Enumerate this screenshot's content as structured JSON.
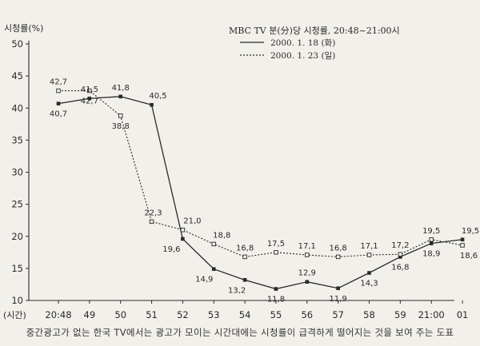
{
  "caption": "중간광고가 없는 한국 TV에서는 광고가 모이는 시간대에는 시청률이 급격하게 떨어지는 것을 보여 주는 도표",
  "chart_data": {
    "type": "line",
    "title": "MBC TV 분(分)당 시청률, 20:48~21:00시",
    "ylabel": "시청률(%)",
    "xlabel": "(시간)",
    "ylim": [
      10,
      50
    ],
    "yticks": [
      10,
      15,
      20,
      25,
      30,
      35,
      40,
      45,
      50
    ],
    "categories": [
      "20:48",
      "49",
      "50",
      "51",
      "52",
      "53",
      "54",
      "55",
      "56",
      "57",
      "58",
      "59",
      "21:00",
      "01"
    ],
    "grid": false,
    "legend": "top-right",
    "series": [
      {
        "name": "2000. 1. 18 (화)",
        "style": "solid",
        "marker": "filled-square",
        "values": [
          40.7,
          41.5,
          41.8,
          40.5,
          19.6,
          14.9,
          13.2,
          11.8,
          12.9,
          11.9,
          14.3,
          16.8,
          18.9,
          19.5
        ],
        "labels": [
          "40,7",
          "41,5",
          "41,8",
          "40,5",
          "19,6",
          "14,9",
          "13,2",
          "11,8",
          "12,9",
          "11,9",
          "14,3",
          "16,8",
          "18,9",
          "19,5"
        ]
      },
      {
        "name": "2000. 1. 23 (일)",
        "style": "dotted",
        "marker": "hollow-square",
        "values": [
          42.7,
          42.7,
          38.8,
          22.3,
          21.0,
          18.8,
          16.8,
          17.5,
          17.1,
          16.8,
          17.1,
          17.2,
          19.5,
          18.6
        ],
        "labels": [
          "42,7",
          "42,7",
          "38,8",
          "22,3",
          "21,0",
          "18,8",
          "16,8",
          "17,5",
          "17,1",
          "16,8",
          "17,1",
          "17,2",
          "19,5",
          "18,6"
        ]
      }
    ]
  }
}
